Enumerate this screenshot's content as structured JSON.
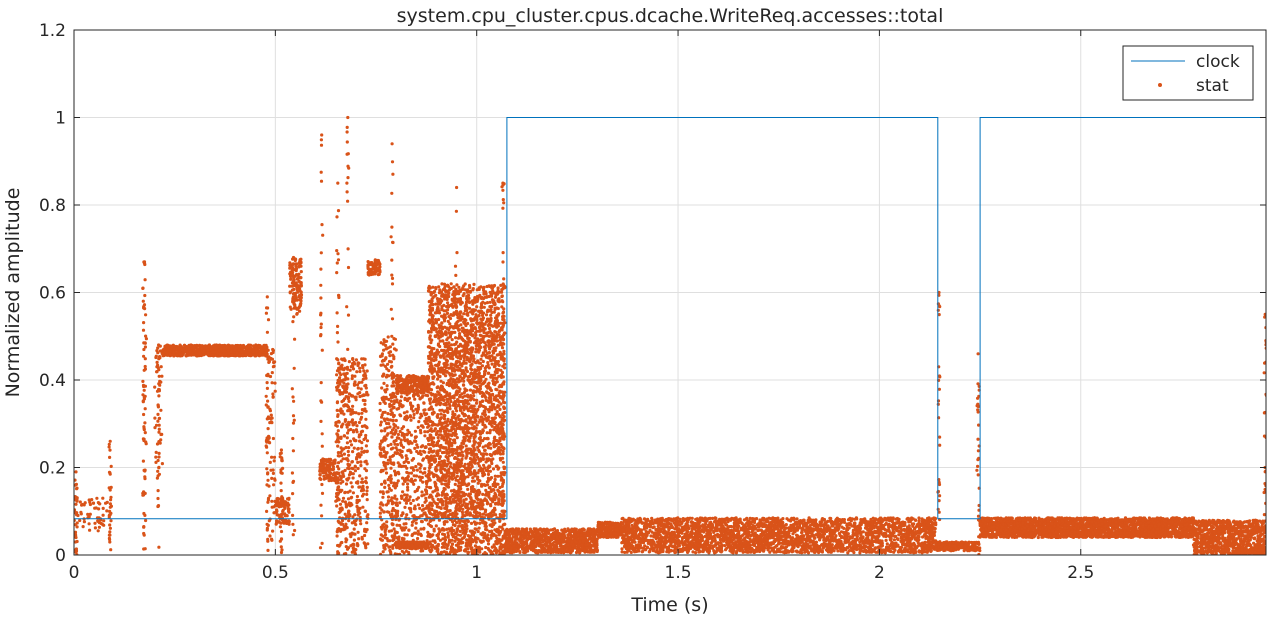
{
  "chart_data": {
    "type": "line",
    "title": "system.cpu_cluster.cpus.dcache.WriteReq.accesses::total",
    "xlabel": "Time (s)",
    "ylabel": "Normalized amplitude",
    "xlim": [
      0,
      2.96
    ],
    "ylim": [
      0,
      1.2
    ],
    "xticks": [
      0,
      0.5,
      1,
      1.5,
      2,
      2.5
    ],
    "xtick_labels": [
      "0",
      "0.5",
      "1",
      "1.5",
      "2",
      "2.5"
    ],
    "yticks": [
      0,
      0.2,
      0.4,
      0.6,
      0.8,
      1,
      1.2
    ],
    "ytick_labels": [
      "0",
      "0.2",
      "0.4",
      "0.6",
      "0.8",
      "1",
      "1.2"
    ],
    "grid": true,
    "legend_position": "top-right",
    "series": [
      {
        "name": "clock",
        "style": "line",
        "color": "#0072BD",
        "x": [
          0,
          1.075,
          1.075,
          2.145,
          2.145,
          2.25,
          2.25,
          2.96
        ],
        "y": [
          0.083,
          0.083,
          1,
          1,
          0.083,
          0.083,
          1,
          1
        ]
      },
      {
        "name": "stat",
        "style": "markers",
        "color": "#D95319",
        "note_segments": "approximate dense point clouds read from the plot",
        "segments": [
          {
            "x0": 0.0,
            "x1": 0.09,
            "lo": 0.055,
            "hi": 0.13,
            "n": 60
          },
          {
            "x0": 0.17,
            "x1": 0.18,
            "lo": 0.06,
            "hi": 0.68,
            "n": 40
          },
          {
            "x0": 0.2,
            "x1": 0.22,
            "lo": 0.2,
            "hi": 0.48,
            "n": 40
          },
          {
            "x0": 0.22,
            "x1": 0.48,
            "lo": 0.455,
            "hi": 0.48,
            "n": 900
          },
          {
            "x0": 0.48,
            "x1": 0.5,
            "lo": 0.03,
            "hi": 0.47,
            "n": 80
          },
          {
            "x0": 0.5,
            "x1": 0.535,
            "lo": 0.07,
            "hi": 0.13,
            "n": 80
          },
          {
            "x0": 0.535,
            "x1": 0.565,
            "lo": 0.55,
            "hi": 0.68,
            "n": 120
          },
          {
            "x0": 0.61,
            "x1": 0.65,
            "lo": 0.17,
            "hi": 0.22,
            "n": 120
          },
          {
            "x0": 0.65,
            "x1": 0.73,
            "lo": 0.0,
            "hi": 0.45,
            "n": 500
          },
          {
            "x0": 0.73,
            "x1": 0.76,
            "lo": 0.64,
            "hi": 0.675,
            "n": 80
          },
          {
            "x0": 0.76,
            "x1": 0.8,
            "lo": 0.0,
            "hi": 0.5,
            "n": 300
          },
          {
            "x0": 0.8,
            "x1": 0.88,
            "lo": 0.37,
            "hi": 0.41,
            "n": 250
          },
          {
            "x0": 0.8,
            "x1": 0.88,
            "lo": 0.0,
            "hi": 0.37,
            "n": 400
          },
          {
            "x0": 0.8,
            "x1": 0.88,
            "lo": 0.015,
            "hi": 0.03,
            "n": 150
          },
          {
            "x0": 0.88,
            "x1": 1.07,
            "lo": 0.0,
            "hi": 0.62,
            "n": 3000
          },
          {
            "x0": 1.07,
            "x1": 1.3,
            "lo": 0.005,
            "hi": 0.06,
            "n": 900
          },
          {
            "x0": 1.3,
            "x1": 1.36,
            "lo": 0.04,
            "hi": 0.075,
            "n": 200
          },
          {
            "x0": 1.36,
            "x1": 2.14,
            "lo": 0.005,
            "hi": 0.085,
            "n": 3000
          },
          {
            "x0": 2.14,
            "x1": 2.25,
            "lo": 0.01,
            "hi": 0.03,
            "n": 200
          },
          {
            "x0": 2.25,
            "x1": 2.78,
            "lo": 0.04,
            "hi": 0.085,
            "n": 2500
          },
          {
            "x0": 2.78,
            "x1": 2.96,
            "lo": 0.0,
            "hi": 0.08,
            "n": 900
          }
        ],
        "spikes": [
          {
            "x": 0.005,
            "hi": 0.19
          },
          {
            "x": 0.09,
            "hi": 0.26
          },
          {
            "x": 0.175,
            "hi": 0.67
          },
          {
            "x": 0.21,
            "hi": 0.48
          },
          {
            "x": 0.48,
            "hi": 0.59
          },
          {
            "x": 0.515,
            "hi": 0.24
          },
          {
            "x": 0.545,
            "hi": 0.68
          },
          {
            "x": 0.615,
            "hi": 0.96
          },
          {
            "x": 0.655,
            "hi": 0.85
          },
          {
            "x": 0.68,
            "hi": 1.0
          },
          {
            "x": 0.79,
            "hi": 0.94
          },
          {
            "x": 0.95,
            "hi": 0.84
          },
          {
            "x": 1.065,
            "hi": 0.85
          },
          {
            "x": 2.148,
            "hi": 0.6
          },
          {
            "x": 2.245,
            "hi": 0.46
          },
          {
            "x": 2.958,
            "hi": 0.55
          }
        ]
      }
    ]
  }
}
